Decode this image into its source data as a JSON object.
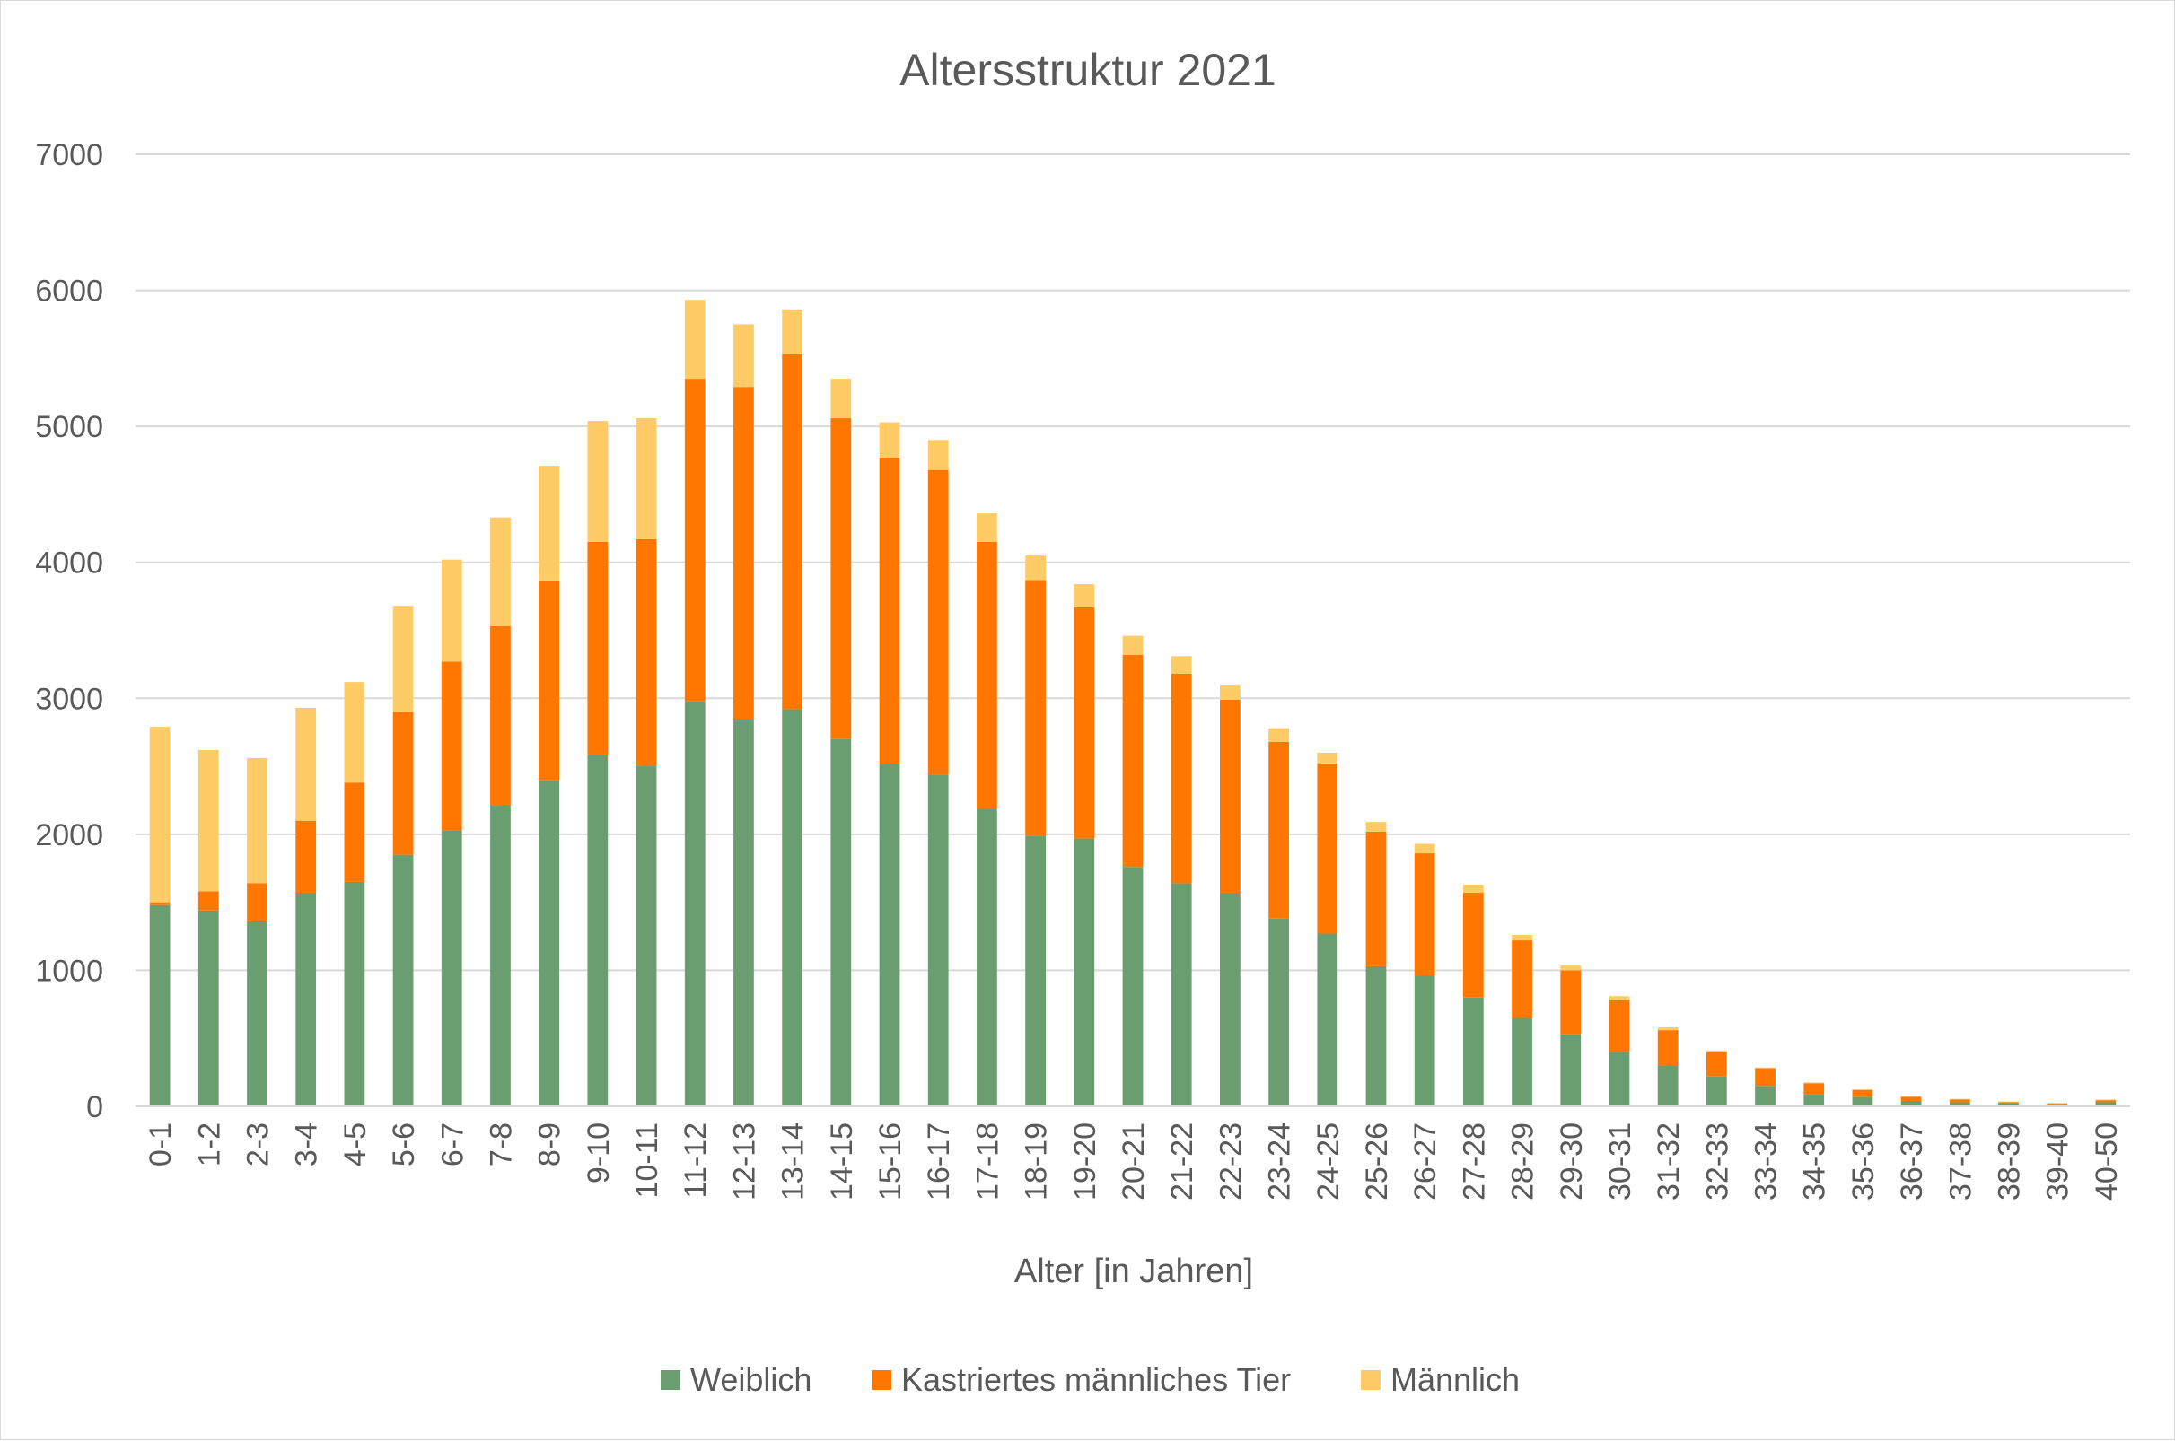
{
  "chart_data": {
    "type": "bar",
    "stacked": true,
    "title": "Altersstruktur 2021",
    "xlabel": "Alter [in Jahren]",
    "ylabel": "",
    "ylim": [
      0,
      7000
    ],
    "yticks": [
      "0",
      "1000",
      "2000",
      "3000",
      "4000",
      "5000",
      "6000",
      "7000"
    ],
    "grid": true,
    "legend_position": "bottom",
    "categories": [
      "0-1",
      "1-2",
      "2-3",
      "3-4",
      "4-5",
      "5-6",
      "6-7",
      "7-8",
      "8-9",
      "9-10",
      "10-11",
      "11-12",
      "12-13",
      "13-14",
      "14-15",
      "15-16",
      "16-17",
      "17-18",
      "18-19",
      "19-20",
      "20-21",
      "21-22",
      "22-23",
      "23-24",
      "24-25",
      "25-26",
      "26-27",
      "27-28",
      "28-29",
      "29-30",
      "30-31",
      "31-32",
      "32-33",
      "33-34",
      "34-35",
      "35-36",
      "36-37",
      "37-38",
      "38-39",
      "39-40",
      "40-50"
    ],
    "series": [
      {
        "name": "Weiblich",
        "color": "#6a9e70",
        "values": [
          1480,
          1440,
          1360,
          1570,
          1650,
          1850,
          2030,
          2210,
          2400,
          2580,
          2500,
          2980,
          2850,
          2920,
          2700,
          2520,
          2440,
          2190,
          1990,
          1970,
          1760,
          1640,
          1570,
          1380,
          1270,
          1030,
          960,
          800,
          650,
          530,
          400,
          300,
          220,
          150,
          90,
          70,
          40,
          30,
          20,
          15,
          30
        ]
      },
      {
        "name": "Kastriertes männliches Tier",
        "color": "#ff7700",
        "values": [
          20,
          140,
          280,
          530,
          730,
          1050,
          1240,
          1320,
          1460,
          1570,
          1670,
          2370,
          2440,
          2610,
          2360,
          2250,
          2240,
          1960,
          1880,
          1700,
          1560,
          1540,
          1420,
          1300,
          1250,
          990,
          900,
          770,
          570,
          470,
          380,
          260,
          180,
          130,
          80,
          50,
          30,
          20,
          10,
          5,
          15
        ]
      },
      {
        "name": "Männlich",
        "color": "#ffcb66",
        "values": [
          1290,
          1040,
          920,
          830,
          740,
          780,
          750,
          800,
          850,
          890,
          890,
          580,
          460,
          330,
          290,
          260,
          220,
          210,
          180,
          170,
          140,
          130,
          110,
          100,
          80,
          70,
          70,
          60,
          40,
          35,
          30,
          20,
          10,
          5,
          5,
          5,
          5,
          5,
          5,
          5,
          5
        ]
      }
    ]
  }
}
